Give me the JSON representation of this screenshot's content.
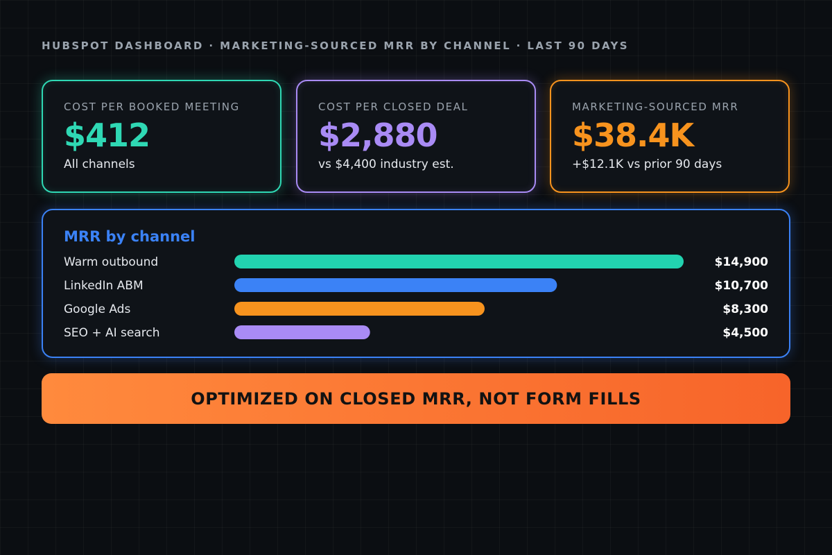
{
  "header": {
    "title": "HUBSPOT DASHBOARD · MARKETING-SOURCED MRR BY CHANNEL · LAST 90 DAYS"
  },
  "kpis": [
    {
      "label": "COST PER BOOKED MEETING",
      "value": "$412",
      "sub": "All channels",
      "color": "#2fd8b4"
    },
    {
      "label": "COST PER CLOSED DEAL",
      "value": "$2,880",
      "sub": "vs $4,400 industry est.",
      "color": "#a98bf5"
    },
    {
      "label": "MARKETING-SOURCED MRR",
      "value": "$38.4K",
      "sub": "+$12.1K vs prior 90 days",
      "color": "#f7931e"
    }
  ],
  "panel": {
    "title": "MRR by channel",
    "color": "#3b82f6"
  },
  "chart_data": {
    "type": "bar",
    "orientation": "horizontal",
    "title": "MRR by channel",
    "categories": [
      "Warm outbound",
      "LinkedIn ABM",
      "Google Ads",
      "SEO + AI search"
    ],
    "values": [
      14900,
      10700,
      8300,
      4500
    ],
    "value_labels": [
      "$14,900",
      "$10,700",
      "$8,300",
      "$4,500"
    ],
    "colors": [
      "#22d3b0",
      "#3b82f6",
      "#f7931e",
      "#a98bf5"
    ],
    "xlim": [
      0,
      14900
    ],
    "grid": false,
    "legend": "none"
  },
  "banner": {
    "text": "OPTIMIZED ON CLOSED MRR, NOT FORM FILLS",
    "color_start": "#ff8a3d",
    "color_end": "#f7642a"
  }
}
